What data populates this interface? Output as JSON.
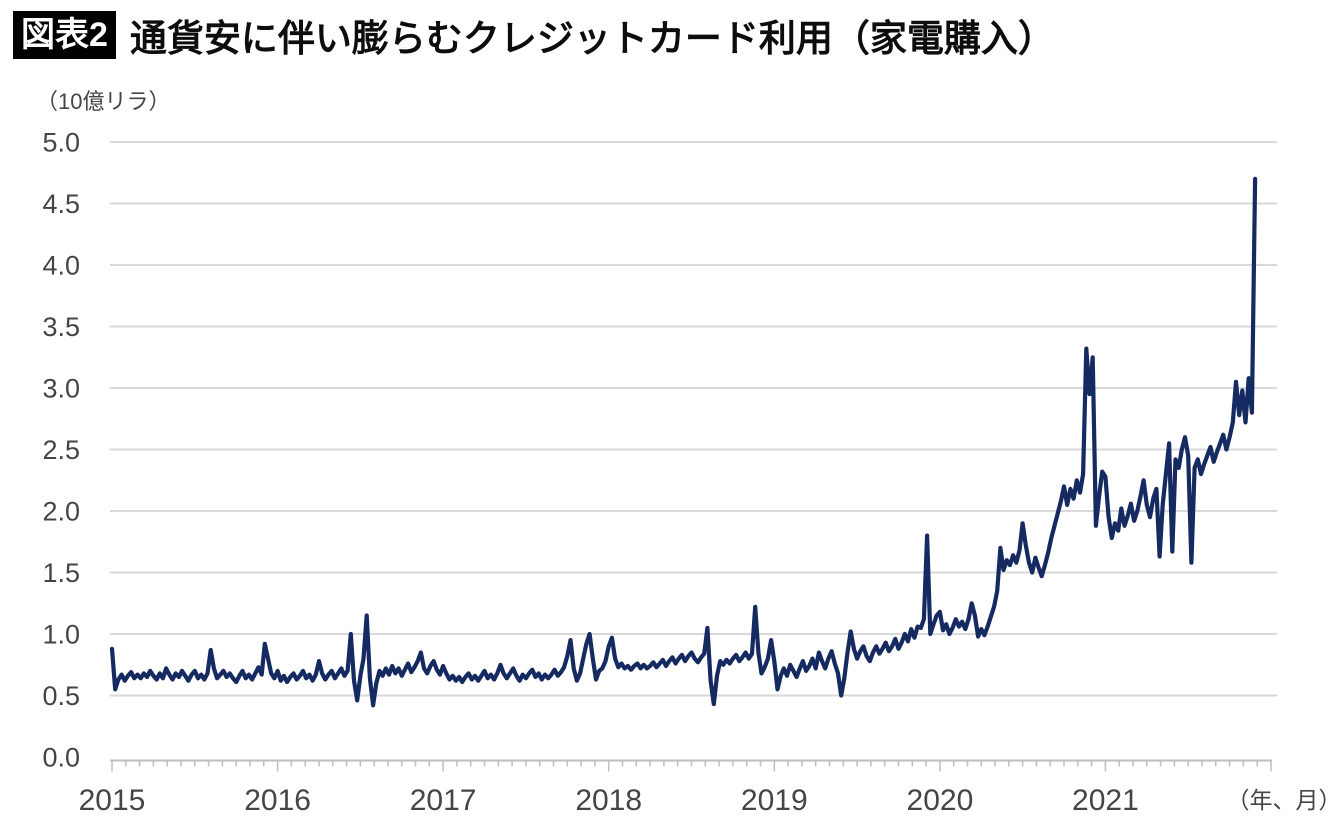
{
  "header": {
    "badge": "図表2",
    "title": "通貨安に伴い膨らむクレジットカード利用（家電購入）"
  },
  "chart_data": {
    "type": "line",
    "title": "通貨安に伴い膨らむクレジットカード利用（家電購入）",
    "unit_label": "（10億リラ）",
    "x_suffix_label": "（年、月）",
    "x_tick_years": [
      "2015",
      "2016",
      "2017",
      "2018",
      "2019",
      "2020",
      "2021"
    ],
    "y_ticks": [
      "0.0",
      "0.5",
      "1.0",
      "1.5",
      "2.0",
      "2.5",
      "3.0",
      "3.5",
      "4.0",
      "4.5",
      "5.0"
    ],
    "ylim": [
      0,
      5
    ],
    "grid": true,
    "frequency": "weekly",
    "points_per_year": 52,
    "start_year": 2015,
    "line_color": "#152A60",
    "grid_color": "#D9D9D9",
    "axis_color": "#BFBFBF",
    "label_color": "#454545",
    "values": [
      0.88,
      0.55,
      0.63,
      0.67,
      0.62,
      0.66,
      0.69,
      0.64,
      0.67,
      0.64,
      0.68,
      0.65,
      0.7,
      0.66,
      0.63,
      0.68,
      0.64,
      0.72,
      0.67,
      0.63,
      0.68,
      0.65,
      0.7,
      0.66,
      0.62,
      0.67,
      0.7,
      0.64,
      0.67,
      0.63,
      0.68,
      0.87,
      0.72,
      0.64,
      0.67,
      0.7,
      0.65,
      0.68,
      0.64,
      0.61,
      0.66,
      0.7,
      0.64,
      0.67,
      0.63,
      0.68,
      0.73,
      0.67,
      0.92,
      0.8,
      0.68,
      0.64,
      0.7,
      0.62,
      0.66,
      0.61,
      0.65,
      0.68,
      0.63,
      0.66,
      0.7,
      0.64,
      0.67,
      0.62,
      0.67,
      0.78,
      0.68,
      0.63,
      0.67,
      0.7,
      0.64,
      0.68,
      0.72,
      0.66,
      0.7,
      1.0,
      0.62,
      0.46,
      0.66,
      0.8,
      1.15,
      0.64,
      0.42,
      0.6,
      0.7,
      0.66,
      0.72,
      0.67,
      0.74,
      0.68,
      0.72,
      0.66,
      0.71,
      0.76,
      0.69,
      0.73,
      0.78,
      0.85,
      0.72,
      0.68,
      0.74,
      0.78,
      0.71,
      0.67,
      0.74,
      0.68,
      0.63,
      0.66,
      0.62,
      0.65,
      0.61,
      0.65,
      0.68,
      0.63,
      0.66,
      0.62,
      0.66,
      0.7,
      0.64,
      0.67,
      0.63,
      0.68,
      0.75,
      0.68,
      0.64,
      0.68,
      0.72,
      0.66,
      0.62,
      0.67,
      0.64,
      0.68,
      0.71,
      0.65,
      0.68,
      0.63,
      0.67,
      0.64,
      0.67,
      0.71,
      0.66,
      0.69,
      0.73,
      0.82,
      0.95,
      0.72,
      0.62,
      0.68,
      0.8,
      0.92,
      1.0,
      0.8,
      0.63,
      0.7,
      0.72,
      0.78,
      0.9,
      0.97,
      0.8,
      0.73,
      0.76,
      0.72,
      0.74,
      0.71,
      0.74,
      0.76,
      0.72,
      0.75,
      0.72,
      0.74,
      0.77,
      0.73,
      0.76,
      0.79,
      0.74,
      0.78,
      0.81,
      0.76,
      0.8,
      0.83,
      0.78,
      0.82,
      0.85,
      0.8,
      0.77,
      0.81,
      0.84,
      1.05,
      0.62,
      0.43,
      0.66,
      0.78,
      0.75,
      0.79,
      0.76,
      0.8,
      0.83,
      0.78,
      0.81,
      0.85,
      0.8,
      0.84,
      1.22,
      0.85,
      0.68,
      0.73,
      0.8,
      0.95,
      0.78,
      0.55,
      0.66,
      0.72,
      0.66,
      0.75,
      0.7,
      0.65,
      0.72,
      0.78,
      0.7,
      0.74,
      0.8,
      0.72,
      0.85,
      0.78,
      0.72,
      0.8,
      0.86,
      0.76,
      0.68,
      0.5,
      0.64,
      0.85,
      1.02,
      0.88,
      0.8,
      0.86,
      0.9,
      0.82,
      0.78,
      0.85,
      0.9,
      0.84,
      0.88,
      0.93,
      0.86,
      0.9,
      0.96,
      0.88,
      0.93,
      1.0,
      0.94,
      1.04,
      0.97,
      1.06,
      1.05,
      1.12,
      1.8,
      1.0,
      1.08,
      1.15,
      1.18,
      1.03,
      1.08,
      1.0,
      1.05,
      1.12,
      1.06,
      1.1,
      1.04,
      1.12,
      1.25,
      1.15,
      0.98,
      1.04,
      0.99,
      1.06,
      1.14,
      1.22,
      1.35,
      1.7,
      1.52,
      1.6,
      1.56,
      1.64,
      1.58,
      1.68,
      1.9,
      1.72,
      1.58,
      1.5,
      1.62,
      1.54,
      1.47,
      1.56,
      1.66,
      1.78,
      1.88,
      1.98,
      2.08,
      2.2,
      2.05,
      2.18,
      2.1,
      2.25,
      2.15,
      2.3,
      3.32,
      2.95,
      3.25,
      1.88,
      2.12,
      2.32,
      2.28,
      1.95,
      1.78,
      1.9,
      1.84,
      2.02,
      1.88,
      1.96,
      2.06,
      1.92,
      2.0,
      2.12,
      2.25,
      2.05,
      1.95,
      2.1,
      2.18,
      1.63,
      2.05,
      2.3,
      2.55,
      1.67,
      2.42,
      2.35,
      2.5,
      2.6,
      2.45,
      1.58,
      2.35,
      2.42,
      2.3,
      2.38,
      2.45,
      2.52,
      2.4,
      2.48,
      2.55,
      2.62,
      2.5,
      2.6,
      2.72,
      3.05,
      2.78,
      2.98,
      2.72,
      3.08,
      2.8,
      4.7
    ]
  }
}
